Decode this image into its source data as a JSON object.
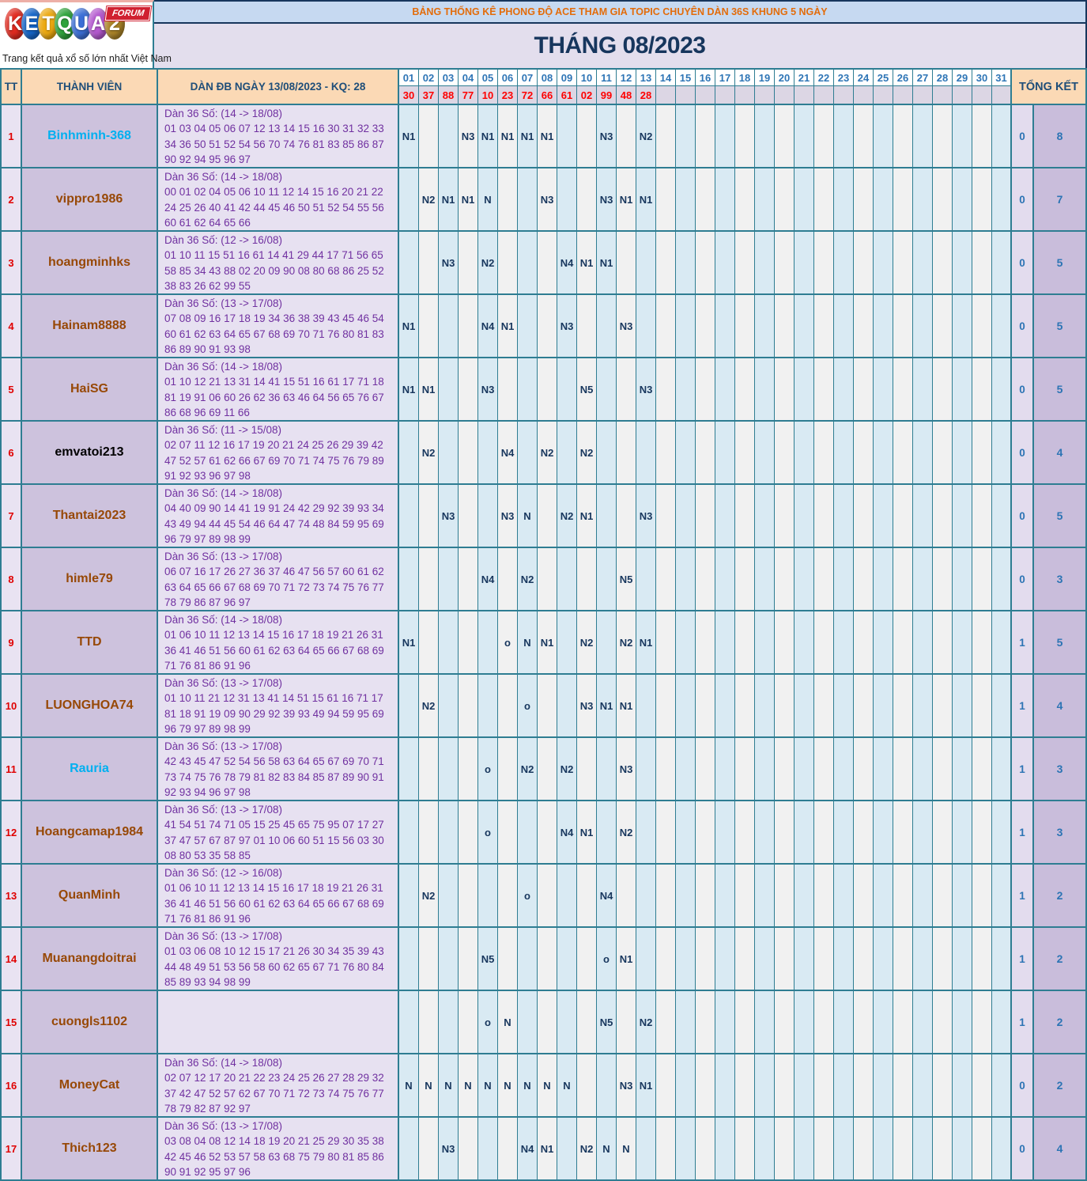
{
  "theme": {
    "border": "#2e7d92",
    "navy": "#17365d",
    "banner_bg": "#c6d9f1",
    "banner_text": "#e36c0a",
    "month_bg": "#e3deed",
    "month_text": "#17365d",
    "head_bg": "#fbd9b5",
    "head_text": "#1f4e79",
    "day_label_text": "#2e75b6",
    "result_text": "#fe0000",
    "result_bg": "#dcd6e4",
    "tt_bg": "#e9e3f2",
    "tt_text": "#e00000",
    "member_bg": "#cdc2dd",
    "dan_bg": "#e7e1f1",
    "dan_text": "#7030a0",
    "day_blue": "#d9eaf3",
    "day_white": "#f1f1f1",
    "mark_text": "#17365d",
    "total1_bg": "#e3dcee",
    "total2_bg": "#c9bddb",
    "total_text": "#2c74b4",
    "tagline_text": "#1c1c1c",
    "logo_badge_bg": "#d02030"
  },
  "logo": {
    "letters": [
      {
        "char": "K",
        "color": "#e02b20"
      },
      {
        "char": "E",
        "color": "#1565c8"
      },
      {
        "char": "T",
        "color": "#eca911"
      },
      {
        "char": "Q",
        "color": "#2ea33b"
      },
      {
        "char": "U",
        "color": "#3b6fd6"
      },
      {
        "char": "A",
        "color": "#b459cf"
      },
      {
        "char": "2",
        "color": "#ab8428"
      }
    ],
    "badge": "FORUM",
    "tagline": "Trang kết quả xổ số lớn nhất Việt Nam"
  },
  "header": {
    "banner": "BẢNG THỐNG KÊ PHONG ĐỘ ACE THAM GIA TOPIC CHUYÊN DÀN 36S KHUNG 5 NGÀY",
    "month": "THÁNG 08/2023"
  },
  "table": {
    "columns": {
      "tt": "TT",
      "member": "THÀNH VIÊN",
      "dan": "DÀN ĐB NGÀY 13/08/2023 - KQ: 28",
      "total": "TỔNG KẾT"
    },
    "days": [
      "01",
      "02",
      "03",
      "04",
      "05",
      "06",
      "07",
      "08",
      "09",
      "10",
      "11",
      "12",
      "13",
      "14",
      "15",
      "16",
      "17",
      "18",
      "19",
      "20",
      "21",
      "22",
      "23",
      "24",
      "25",
      "26",
      "27",
      "28",
      "29",
      "30",
      "31"
    ],
    "day_results": {
      "01": "30",
      "02": "37",
      "03": "88",
      "04": "77",
      "05": "10",
      "06": "23",
      "07": "72",
      "08": "66",
      "09": "61",
      "10": "02",
      "11": "99",
      "12": "48",
      "13": "28"
    },
    "rows": [
      {
        "tt": "1",
        "member": "Binhminh-368",
        "member_color": "#00b0f0",
        "dan_title": "Dàn 36 Số: (14 -> 18/08)",
        "dan_numbers": "01 03 04 05 06 07 12 13 14 15 16 30 31 32 33 34 36 50 51 52 54 56 70 74 76 81 83 85 86 87 90 92 94 95 96 97",
        "marks": {
          "01": "N1",
          "04": "N3",
          "05": "N1",
          "06": "N1",
          "07": "N1",
          "08": "N1",
          "11": "N3",
          "13": "N2"
        },
        "total_left": "0",
        "total_right": "8"
      },
      {
        "tt": "2",
        "member": "vippro1986",
        "member_color": "#974806",
        "dan_title": "Dàn 36 Số: (14 -> 18/08)",
        "dan_numbers": "00 01 02 04 05 06 10 11 12 14 15 16 20 21 22 24 25 26 40 41 42 44 45 46 50 51 52 54 55 56 60 61 62 64 65 66",
        "marks": {
          "02": "N2",
          "03": "N1",
          "04": "N1",
          "05": "N",
          "08": "N3",
          "11": "N3",
          "12": "N1",
          "13": "N1"
        },
        "total_left": "0",
        "total_right": "7"
      },
      {
        "tt": "3",
        "member": "hoangminhks",
        "member_color": "#974806",
        "dan_title": "Dàn 36 Số: (12 -> 16/08)",
        "dan_numbers": "01 10 11 15 51 16 61 14 41 29 44 17 71 56 65 58 85 34 43 88 02 20 09 90 08 80 68 86 25 52 38 83 26 62 99 55",
        "marks": {
          "03": "N3",
          "05": "N2",
          "09": "N4",
          "10": "N1",
          "11": "N1"
        },
        "total_left": "0",
        "total_right": "5"
      },
      {
        "tt": "4",
        "member": "Hainam8888",
        "member_color": "#974806",
        "dan_title": "Dàn 36 Số: (13 -> 17/08)",
        "dan_numbers": "07 08 09 16 17 18 19 34 36 38 39 43 45 46 54 60 61 62 63 64 65 67 68 69 70 71 76 80 81 83 86 89 90 91 93 98",
        "marks": {
          "01": "N1",
          "05": "N4",
          "06": "N1",
          "09": "N3",
          "12": "N3"
        },
        "total_left": "0",
        "total_right": "5"
      },
      {
        "tt": "5",
        "member": "HaiSG",
        "member_color": "#974806",
        "dan_title": "Dàn 36 Số: (14 -> 18/08)",
        "dan_numbers": "01 10 12 21 13 31 14 41 15 51 16 61 17 71 18 81 19 91 06 60 26 62 36 63 46 64 56 65 76 67 86 68 96 69 11 66",
        "marks": {
          "01": "N1",
          "02": "N1",
          "05": "N3",
          "10": "N5",
          "13": "N3"
        },
        "total_left": "0",
        "total_right": "5"
      },
      {
        "tt": "6",
        "member": "emvatoi213",
        "member_color": "#000000",
        "dan_title": "Dàn 36 Số: (11 -> 15/08)",
        "dan_numbers": "02 07 11 12 16 17 19 20 21 24 25 26 29 39 42 47 52 57 61 62 66 67 69 70 71 74 75 76 79 89 91 92 93 96 97 98",
        "marks": {
          "02": "N2",
          "06": "N4",
          "08": "N2",
          "10": "N2"
        },
        "total_left": "0",
        "total_right": "4"
      },
      {
        "tt": "7",
        "member": "Thantai2023",
        "member_color": "#974806",
        "dan_title": "Dàn 36 Số: (14 -> 18/08)",
        "dan_numbers": "04 40 09 90 14 41 19 91 24 42 29 92 39 93 34 43 49 94 44 45 54 46 64 47 74 48 84 59 95 69 96 79 97 89 98 99",
        "marks": {
          "03": "N3",
          "06": "N3",
          "07": "N",
          "09": "N2",
          "10": "N1",
          "13": "N3"
        },
        "total_left": "0",
        "total_right": "5"
      },
      {
        "tt": "8",
        "member": "himle79",
        "member_color": "#974806",
        "dan_title": "Dàn 36 Số: (13 -> 17/08)",
        "dan_numbers": "06 07 16 17 26 27 36 37 46 47 56 57 60 61 62 63 64 65 66 67 68 69 70 71 72 73 74 75 76 77 78 79 86 87 96 97",
        "marks": {
          "05": "N4",
          "07": "N2",
          "12": "N5"
        },
        "total_left": "0",
        "total_right": "3"
      },
      {
        "tt": "9",
        "member": "TTD",
        "member_color": "#974806",
        "dan_title": "Dàn 36 Số: (14 -> 18/08)",
        "dan_numbers": "01 06 10 11 12 13 14 15 16 17 18 19 21 26 31 36 41 46 51 56 60 61 62 63 64 65 66 67 68 69 71 76 81 86 91 96",
        "marks": {
          "01": "N1",
          "06": "o",
          "07": "N",
          "08": "N1",
          "10": "N2",
          "12": "N2",
          "13": "N1"
        },
        "total_left": "1",
        "total_right": "5"
      },
      {
        "tt": "10",
        "member": "LUONGHOA74",
        "member_color": "#974806",
        "dan_title": "Dàn 36 Số: (13 -> 17/08)",
        "dan_numbers": "01 10 11 21 12 31 13 41 14 51 15 61 16 71 17 81 18 91 19 09 90 29 92 39 93 49 94 59 95 69 96 79 97 89 98 99",
        "marks": {
          "02": "N2",
          "07": "o",
          "10": "N3",
          "11": "N1",
          "12": "N1"
        },
        "total_left": "1",
        "total_right": "4"
      },
      {
        "tt": "11",
        "member": "Rauria",
        "member_color": "#00b0f0",
        "dan_title": "Dàn 36 Số: (13 -> 17/08)",
        "dan_numbers": "42 43 45 47 52 54 56 58 63 64 65 67 69 70 71 73 74 75 76 78 79 81 82 83 84 85 87 89 90 91 92 93 94 96 97 98",
        "marks": {
          "05": "o",
          "07": "N2",
          "09": "N2",
          "12": "N3"
        },
        "total_left": "1",
        "total_right": "3"
      },
      {
        "tt": "12",
        "member": "Hoangcamap1984",
        "member_color": "#974806",
        "dan_title": "Dàn 36 Số: (13 -> 17/08)",
        "dan_numbers": "41 54 51 74 71 05 15 25 45 65 75 95 07 17 27 37 47 57 67 87 97 01 10 06 60 51 15 56 03 30 08 80 53 35 58 85",
        "marks": {
          "05": "o",
          "09": "N4",
          "10": "N1",
          "12": "N2"
        },
        "total_left": "1",
        "total_right": "3"
      },
      {
        "tt": "13",
        "member": "QuanMinh",
        "member_color": "#974806",
        "dan_title": "Dàn 36 Số: (12 -> 16/08)",
        "dan_numbers": "01 06 10 11 12 13 14 15 16 17 18 19 21 26 31 36 41 46 51 56 60 61 62 63 64 65 66 67 68 69 71 76 81 86 91 96",
        "marks": {
          "02": "N2",
          "07": "o",
          "11": "N4"
        },
        "total_left": "1",
        "total_right": "2"
      },
      {
        "tt": "14",
        "member": "Muanangdoitrai",
        "member_color": "#974806",
        "dan_title": "Dàn 36 Số: (13 -> 17/08)",
        "dan_numbers": "01 03 06 08 10 12 15 17 21 26 30 34 35 39 43 44 48 49 51 53 56 58 60 62 65 67 71 76 80 84 85 89 93 94 98 99",
        "marks": {
          "05": "N5",
          "11": "o",
          "12": "N1"
        },
        "total_left": "1",
        "total_right": "2"
      },
      {
        "tt": "15",
        "member": "cuongls1102",
        "member_color": "#974806",
        "dan_title": "",
        "dan_numbers": "",
        "marks": {
          "05": "o",
          "06": "N",
          "11": "N5",
          "13": "N2"
        },
        "total_left": "1",
        "total_right": "2"
      },
      {
        "tt": "16",
        "member": "MoneyCat",
        "member_color": "#974806",
        "dan_title": "Dàn 36 Số: (14 -> 18/08)",
        "dan_numbers": "02 07 12 17 20 21 22 23 24 25 26 27 28 29 32 37 42 47 52 57 62 67 70 71 72 73 74 75 76 77 78 79 82 87 92 97",
        "marks": {
          "01": "N",
          "02": "N",
          "03": "N",
          "04": "N",
          "05": "N",
          "06": "N",
          "07": "N",
          "08": "N",
          "09": "N",
          "12": "N3",
          "13": "N1"
        },
        "total_left": "0",
        "total_right": "2"
      },
      {
        "tt": "17",
        "member": "Thich123",
        "member_color": "#974806",
        "dan_title": "Dàn 36 Số: (13 -> 17/08)",
        "dan_numbers": "03 08 04 08 12 14 18 19 20 21 25 29 30 35 38 42 45 46 52 53 57 58 63 68 75 79 80 81 85 86 90 91 92 95 97 96",
        "marks": {
          "03": "N3",
          "07": "N4",
          "08": "N1",
          "10": "N2",
          "11": "N",
          "12": "N"
        },
        "total_left": "0",
        "total_right": "4"
      }
    ]
  }
}
